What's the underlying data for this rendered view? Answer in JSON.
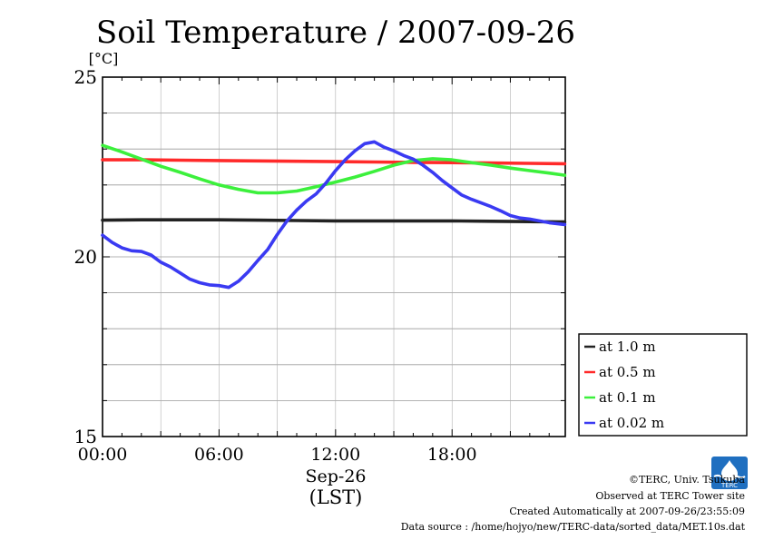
{
  "chart_data": {
    "type": "line",
    "title": "Soil Temperature / 2007-09-26",
    "ylabel": "[°C]",
    "xlabel_line1": "Sep-26",
    "xlabel_line2": "(LST)",
    "x_unit": "hours",
    "xlim": [
      0,
      23.83
    ],
    "ylim": [
      15,
      25
    ],
    "x_ticks": [
      0,
      6,
      12,
      18
    ],
    "x_tick_labels": [
      "00:00",
      "06:00",
      "12:00",
      "18:00"
    ],
    "y_ticks": [
      15,
      20,
      25
    ],
    "y_tick_labels": [
      "15",
      "20",
      "25"
    ],
    "grid": true,
    "legend_position": "right",
    "series": [
      {
        "name": "at 1.0 m",
        "color": "#222222",
        "x": [
          0,
          2,
          4,
          6,
          8,
          10,
          12,
          14,
          16,
          18,
          20,
          22,
          23.8
        ],
        "y": [
          21.02,
          21.03,
          21.03,
          21.03,
          21.02,
          21.01,
          21.0,
          21.0,
          21.0,
          21.0,
          20.99,
          20.98,
          20.97
        ]
      },
      {
        "name": "at 0.5 m",
        "color": "#ff2a2a",
        "x": [
          0,
          2,
          4,
          6,
          8,
          10,
          12,
          14,
          16,
          18,
          20,
          22,
          23.8
        ],
        "y": [
          22.7,
          22.7,
          22.69,
          22.68,
          22.67,
          22.66,
          22.65,
          22.64,
          22.63,
          22.62,
          22.61,
          22.6,
          22.59
        ]
      },
      {
        "name": "at 0.1 m",
        "color": "#3cf03c",
        "x": [
          0,
          1,
          2,
          3,
          4,
          5,
          6,
          7,
          8,
          9,
          10,
          11,
          12,
          13,
          14,
          15,
          16,
          17,
          18,
          19,
          20,
          21,
          22,
          23,
          23.8
        ],
        "y": [
          23.1,
          22.92,
          22.72,
          22.52,
          22.35,
          22.17,
          22.0,
          21.88,
          21.78,
          21.78,
          21.83,
          21.95,
          22.08,
          22.22,
          22.38,
          22.55,
          22.68,
          22.73,
          22.7,
          22.62,
          22.55,
          22.47,
          22.4,
          22.33,
          22.27
        ]
      },
      {
        "name": "at 0.02 m",
        "color": "#3a3af2",
        "x": [
          0,
          0.5,
          1,
          1.5,
          2,
          2.5,
          3,
          3.5,
          4,
          4.5,
          5,
          5.5,
          6,
          6.5,
          7,
          7.5,
          8,
          8.5,
          9,
          9.5,
          10,
          10.5,
          11,
          11.5,
          12,
          12.5,
          13,
          13.5,
          14,
          14.5,
          15,
          15.5,
          16,
          16.5,
          17,
          17.5,
          18,
          18.5,
          19,
          19.5,
          20,
          20.5,
          21,
          21.5,
          22,
          22.5,
          23,
          23.8
        ],
        "y": [
          20.6,
          20.4,
          20.25,
          20.17,
          20.15,
          20.05,
          19.85,
          19.72,
          19.55,
          19.38,
          19.28,
          19.22,
          19.2,
          19.15,
          19.32,
          19.58,
          19.9,
          20.2,
          20.62,
          21.0,
          21.3,
          21.55,
          21.75,
          22.05,
          22.4,
          22.7,
          22.95,
          23.15,
          23.2,
          23.05,
          22.95,
          22.82,
          22.72,
          22.55,
          22.35,
          22.12,
          21.92,
          21.72,
          21.6,
          21.5,
          21.4,
          21.28,
          21.15,
          21.08,
          21.05,
          21.0,
          20.95,
          20.9
        ]
      }
    ]
  },
  "footer": {
    "copyright": "©TERC, Univ. Tsukuba",
    "observed": "Observed at TERC Tower site",
    "created": "Created Automatically at 2007-09-26/23:55:09",
    "source": "Data source : /home/hojyo/new/TERC-data/sorted_data/MET.10s.dat"
  },
  "logo": {
    "text": "TERC",
    "color": "#1f6fc0"
  }
}
